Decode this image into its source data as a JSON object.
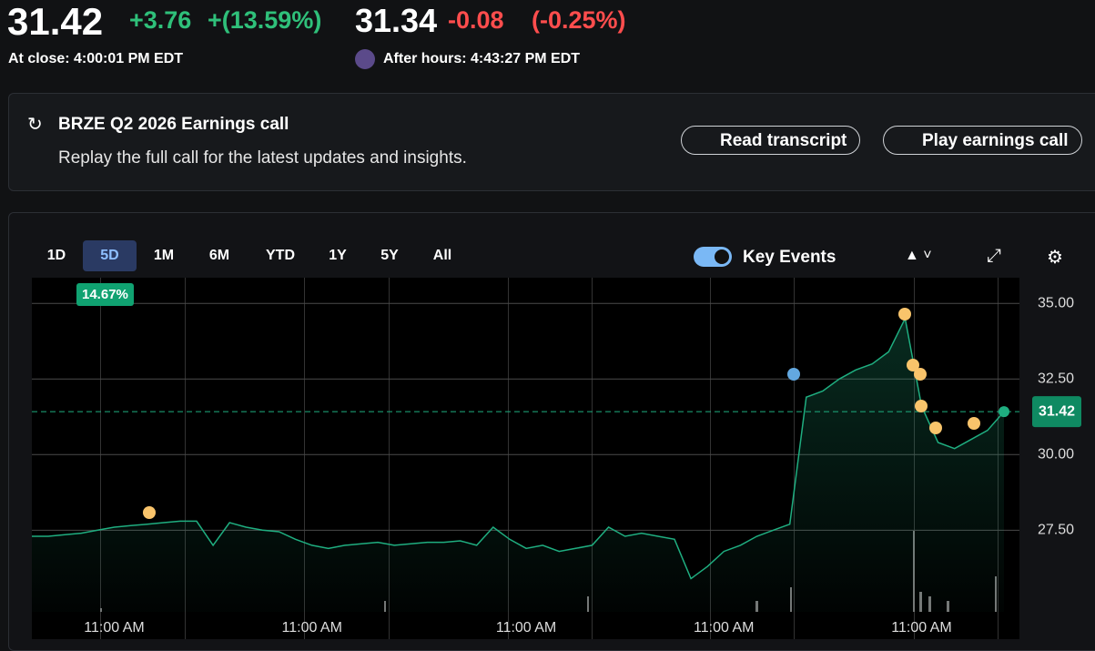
{
  "quote": {
    "price": "31.42",
    "change": "+3.76",
    "change_pct": "+(13.59%)",
    "close_label": "At close: 4:00:01 PM EDT",
    "after_price": "31.34",
    "after_change": "-0.08",
    "after_pct": "(-0.25%)",
    "after_label": "After hours: 4:43:27 PM EDT"
  },
  "banner": {
    "title": "BRZE Q2 2026 Earnings call",
    "text": "Replay the full call for the latest updates and insights.",
    "buttons": [
      "Read transcript",
      "Play earnings call"
    ]
  },
  "tabs": [
    "1D",
    "5D",
    "1M",
    "6M",
    "YTD",
    "1Y",
    "5Y",
    "All"
  ],
  "range_badge": "14.67%",
  "key_events": "Key Events",
  "chart_data": {
    "type": "line",
    "color": "#1fae80",
    "categories": [
      null,
      null,
      null,
      null,
      null,
      "11:00 AM",
      null,
      null,
      null,
      null,
      null,
      null,
      null,
      null,
      null,
      null,
      null,
      "11:00 AM",
      null,
      null,
      null,
      null,
      null,
      null,
      null,
      null,
      null,
      null,
      null,
      null,
      "11:00 AM",
      null,
      null,
      null,
      null,
      null,
      null,
      null,
      null,
      null,
      null,
      null,
      "11:00 AM",
      null,
      null,
      null,
      null,
      null,
      null,
      null,
      null,
      null,
      null,
      null,
      "11:00 AM",
      null,
      null,
      null,
      null,
      null
    ],
    "values": [
      27.3,
      27.3,
      27.35,
      27.4,
      27.5,
      27.6,
      27.65,
      27.7,
      27.75,
      27.8,
      27.8,
      27.0,
      27.75,
      27.6,
      27.5,
      27.45,
      27.2,
      27.0,
      26.9,
      27.0,
      27.05,
      27.1,
      27.0,
      27.05,
      27.1,
      27.1,
      27.15,
      27.0,
      27.6,
      27.2,
      26.9,
      27.0,
      26.8,
      26.9,
      27.0,
      27.6,
      27.3,
      27.4,
      27.3,
      27.2,
      25.9,
      26.3,
      26.8,
      27.0,
      27.3,
      27.5,
      27.7,
      31.9,
      32.1,
      32.5,
      32.8,
      33.0,
      33.4,
      34.5,
      31.6,
      30.4,
      30.2,
      30.5,
      30.8,
      31.42
    ],
    "current": 31.42,
    "ylim": [
      24.8,
      35.85
    ],
    "yticks": [
      {
        "value": 35,
        "label": "35.00"
      },
      {
        "value": 32.5,
        "label": "32.50"
      },
      {
        "value": 30,
        "label": "30.00"
      },
      {
        "value": 27.5,
        "label": "27.50"
      }
    ],
    "grid": true
  }
}
